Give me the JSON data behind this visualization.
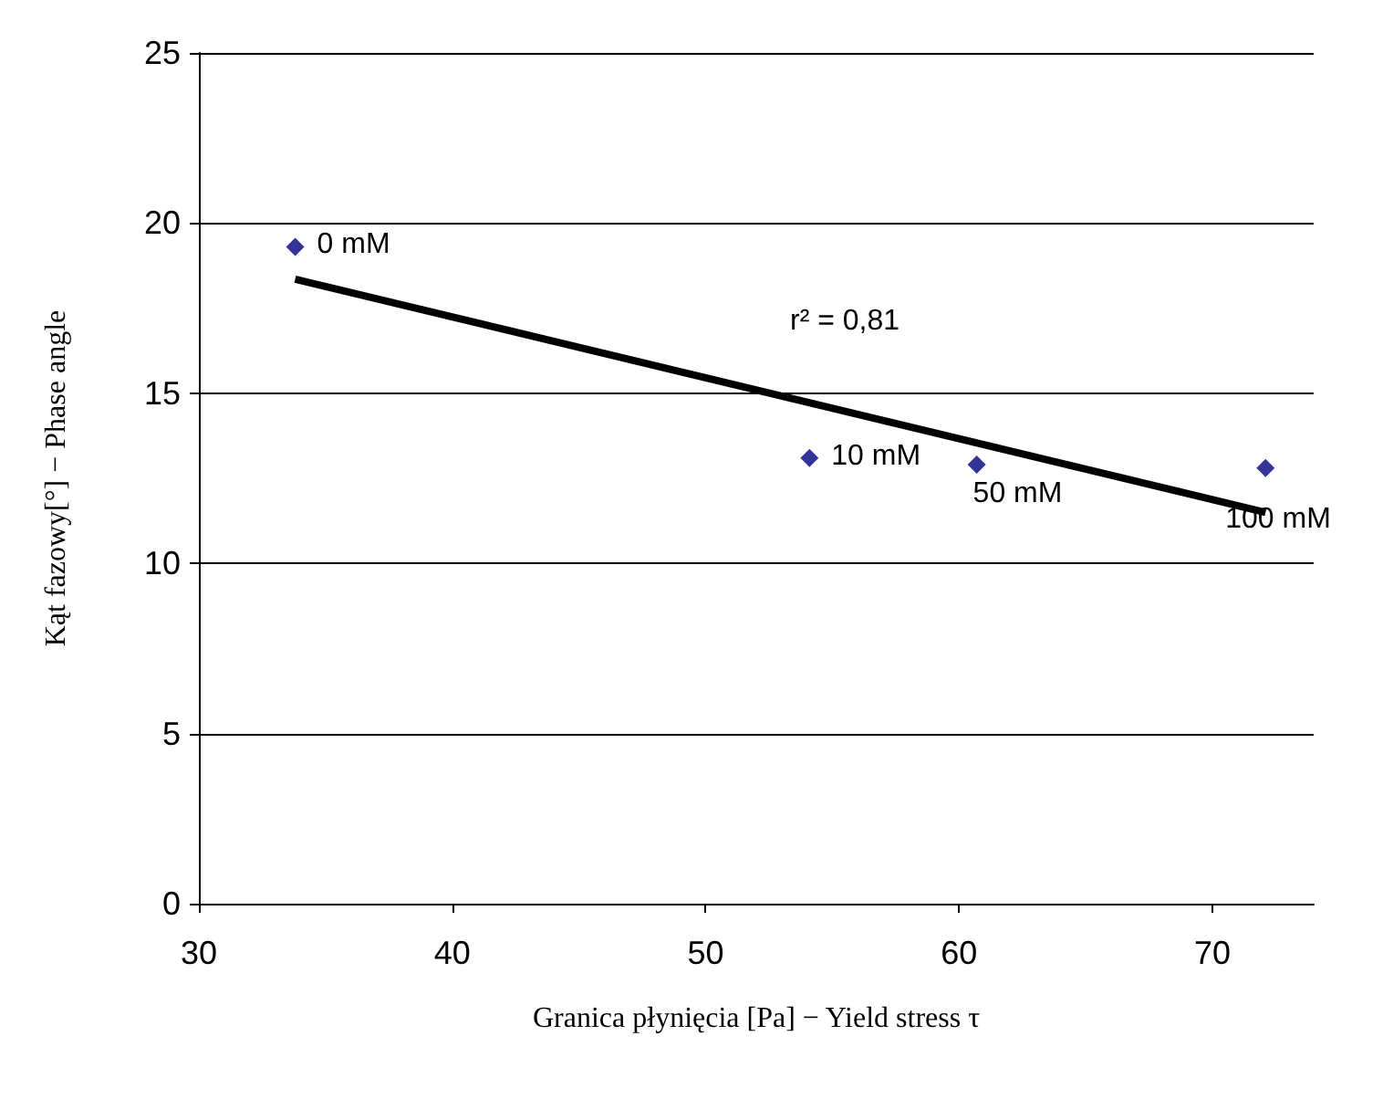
{
  "chart_data": {
    "type": "scatter",
    "xlabel": "Granica płynięcia [Pa] − Yield stress τ",
    "ylabel": "Kąt fazowy[°] − Phase angle",
    "series": [
      {
        "color": "#000080",
        "marker": "diamond",
        "x": [
          33.8,
          54.1,
          60.7,
          72.1
        ],
        "values": [
          19.3,
          13.1,
          12.9,
          12.8
        ]
      },
      {
        "type": "line",
        "color": "#000000",
        "marker": "none",
        "x": [
          33.8,
          72.1
        ],
        "values": [
          18.35,
          11.5
        ]
      }
    ],
    "annotations": [
      {
        "text": "0 mM",
        "x": 33.8,
        "y": 19.3
      },
      {
        "text": "10 mM",
        "x": 54.1,
        "y": 13.1
      },
      {
        "text": "50 mM",
        "x": 60.7,
        "y": 12.9
      },
      {
        "text": "100 mM",
        "x": 72.1,
        "y": 12.8
      },
      "r² = 0,81"
    ],
    "xlim": [
      30,
      74
    ],
    "xticks": [
      30,
      40,
      50,
      60,
      70
    ],
    "ylim": [
      0,
      25
    ],
    "yticks": [
      0,
      5,
      10,
      15,
      20,
      25
    ],
    "grid": "y"
  }
}
